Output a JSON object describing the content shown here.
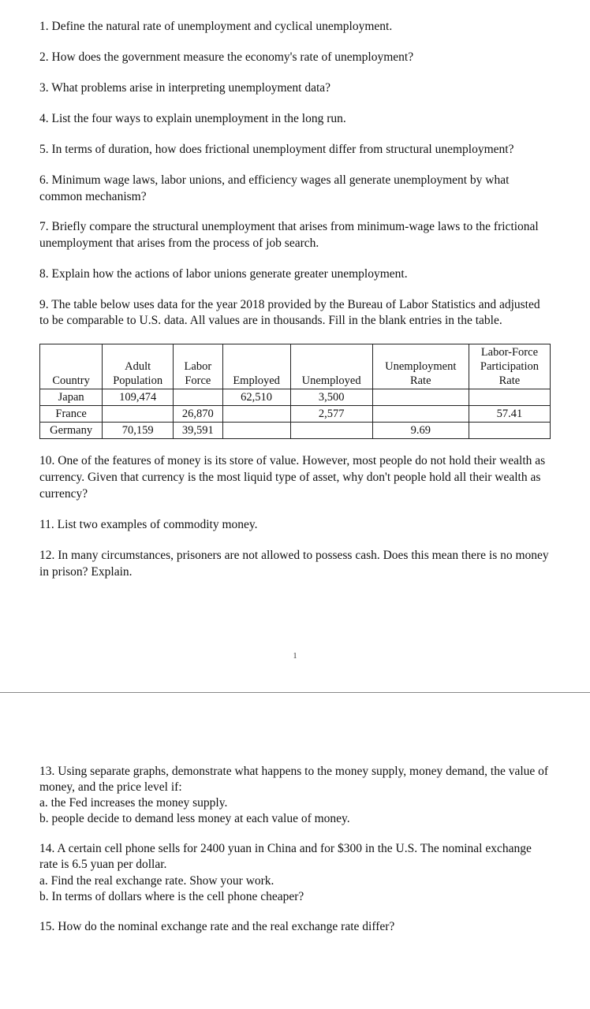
{
  "questions": {
    "q1": "1. Define the natural rate of unemployment and cyclical unemployment.",
    "q2": "2. How does the government measure the economy's rate of unemployment?",
    "q3": "3. What problems arise in interpreting unemployment data?",
    "q4": "4. List the four ways to explain unemployment in the long run.",
    "q5": "5. In terms of duration, how does frictional unemployment differ from structural unemployment?",
    "q6": "6. Minimum wage laws, labor unions, and efficiency wages all generate unemployment by what common mechanism?",
    "q7": "7. Briefly compare the structural unemployment that arises from minimum-wage laws to the frictional unemployment that arises from the process of job search.",
    "q8": "8. Explain how the actions of labor unions generate greater unemployment.",
    "q9": "9. The table below uses data for the year 2018 provided by the Bureau of Labor Statistics and adjusted to be comparable to U.S. data. All values are in thousands. Fill in the blank entries in the table.",
    "q10": "10. One of the features of money is its store of value. However, most people do not hold their wealth as currency. Given that currency is the most liquid type of asset, why don't people hold all their wealth as currency?",
    "q11": "11. List two examples of commodity money.",
    "q12": "12. In many circumstances, prisoners are not allowed to possess cash. Does this mean there is no money in prison? Explain.",
    "q13": "13. Using separate graphs, demonstrate what happens to the money supply, money demand, the value of money, and the price level if:",
    "q13a": "a.    the Fed increases the money supply.",
    "q13b": "b.    people decide to demand less money at each value of money.",
    "q14": "14. A certain cell phone sells for 2400 yuan in China and for $300 in the U.S. The nominal exchange rate is 6.5 yuan per dollar.",
    "q14a": "a.    Find the real exchange rate. Show your work.",
    "q14b": "b.    In terms of dollars where is the cell phone cheaper?",
    "q15": "15. How do the nominal exchange rate and the real exchange rate differ?"
  },
  "table": {
    "columns": [
      "Country",
      "Adult Population",
      "Labor Force",
      "Employed",
      "Unemployed",
      "Unemployment Rate",
      "Labor-Force Participation Rate"
    ],
    "h_country": "Country",
    "h_adult1": "Adult",
    "h_adult2": "Population",
    "h_labor1": "Labor",
    "h_labor2": "Force",
    "h_employed": "Employed",
    "h_unemployed": "Unemployed",
    "h_urate1": "Unemployment",
    "h_urate2": "Rate",
    "h_lfpr1": "Labor-Force",
    "h_lfpr2": "Participation",
    "h_lfpr3": "Rate",
    "rows": [
      {
        "country": "Japan",
        "adult": "109,474",
        "labor": "",
        "employed": "62,510",
        "unemployed": "3,500",
        "urate": "",
        "lfpr": ""
      },
      {
        "country": "France",
        "adult": "",
        "labor": "26,870",
        "employed": "",
        "unemployed": "2,577",
        "urate": "",
        "lfpr": "57.41"
      },
      {
        "country": "Germany",
        "adult": "70,159",
        "labor": "39,591",
        "employed": "",
        "unemployed": "",
        "urate": "9.69",
        "lfpr": ""
      }
    ],
    "border_color": "#222222",
    "font_size": 14.5
  },
  "page_number": "1",
  "colors": {
    "text": "#111111",
    "bg": "#ffffff",
    "divider": "#888888"
  }
}
